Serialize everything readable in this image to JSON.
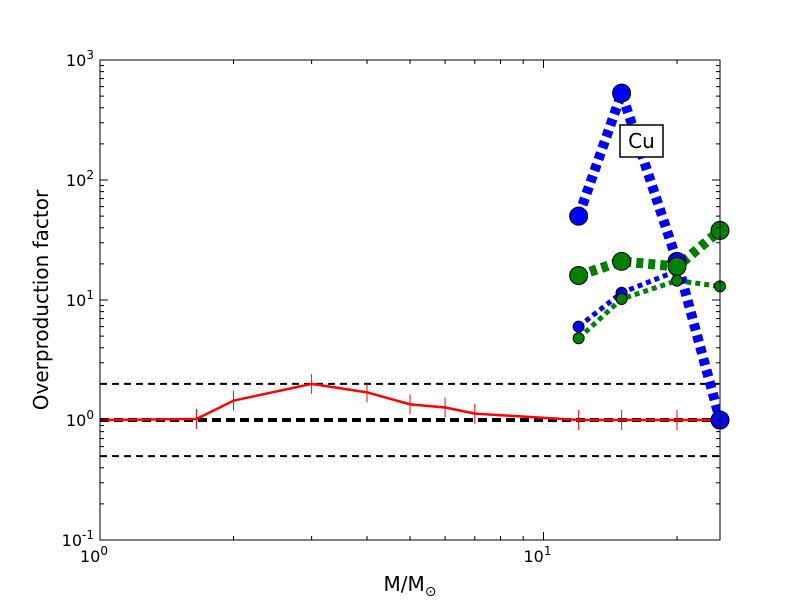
{
  "chart_data": {
    "type": "line",
    "title": "",
    "xlabel": "M/M",
    "xlabel_sub": "⊙",
    "ylabel": "Overproduction factor",
    "xscale": "log",
    "yscale": "log",
    "xlim": [
      1,
      25
    ],
    "ylim": [
      0.1,
      1000
    ],
    "x_ticks": [
      {
        "value": 1,
        "base": "10",
        "exp": "0"
      },
      {
        "value": 10,
        "base": "10",
        "exp": "1"
      }
    ],
    "y_ticks": [
      {
        "value": 0.1,
        "base": "10",
        "exp": "-1"
      },
      {
        "value": 1,
        "base": "10",
        "exp": "0"
      },
      {
        "value": 10,
        "base": "10",
        "exp": "1"
      },
      {
        "value": 100,
        "base": "10",
        "exp": "2"
      },
      {
        "value": 1000,
        "base": "10",
        "exp": "3"
      }
    ],
    "grid": false,
    "legend": "none",
    "annotation": "Cu",
    "reference_lines": [
      {
        "y": 2,
        "style": "dashed",
        "color": "#000000",
        "weight": "thin"
      },
      {
        "y": 1,
        "style": "dashed",
        "color": "#000000",
        "weight": "thick"
      },
      {
        "y": 0.5,
        "style": "dashed",
        "color": "#000000",
        "weight": "thin"
      }
    ],
    "series": [
      {
        "style": "solid",
        "color": "#ff0000",
        "markers": "vertical-tick",
        "x": [
          1,
          1.65,
          2,
          3,
          4,
          5,
          6,
          7,
          12,
          15,
          20,
          25
        ],
        "y": [
          1.0,
          1.02,
          1.45,
          2.0,
          1.7,
          1.35,
          1.27,
          1.13,
          1.0,
          1.0,
          1.0,
          1.0
        ]
      },
      {
        "style": "dotted-thick",
        "color": "#0000ff",
        "markers": "circle-large",
        "x": [
          12,
          15,
          20,
          25
        ],
        "y": [
          50,
          530,
          21,
          1.0
        ]
      },
      {
        "style": "dotted",
        "color": "#0000ff",
        "markers": "circle-small",
        "x": [
          12,
          15,
          20
        ],
        "y": [
          6.0,
          11.5,
          17.5
        ]
      },
      {
        "style": "dotted-thick",
        "color": "#008000",
        "markers": "circle-large",
        "x": [
          12,
          15,
          20,
          25
        ],
        "y": [
          16,
          21,
          19,
          38
        ]
      },
      {
        "style": "dotted",
        "color": "#008000",
        "markers": "circle-small",
        "x": [
          12,
          15,
          20,
          25
        ],
        "y": [
          4.8,
          10.2,
          14.5,
          13.0
        ]
      }
    ]
  }
}
